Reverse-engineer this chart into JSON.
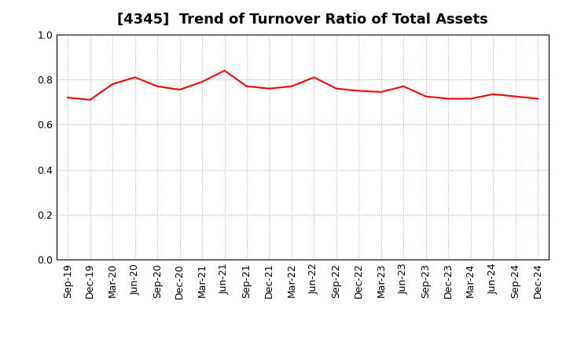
{
  "title": "[4345]  Trend of Turnover Ratio of Total Assets",
  "labels": [
    "Sep-19",
    "Dec-19",
    "Mar-20",
    "Jun-20",
    "Sep-20",
    "Dec-20",
    "Mar-21",
    "Jun-21",
    "Sep-21",
    "Dec-21",
    "Mar-22",
    "Jun-22",
    "Sep-22",
    "Dec-22",
    "Mar-23",
    "Jun-23",
    "Sep-23",
    "Dec-23",
    "Mar-24",
    "Jun-24",
    "Sep-24",
    "Dec-24"
  ],
  "values": [
    0.72,
    0.71,
    0.78,
    0.81,
    0.77,
    0.755,
    0.79,
    0.84,
    0.77,
    0.76,
    0.77,
    0.81,
    0.76,
    0.75,
    0.745,
    0.77,
    0.725,
    0.715,
    0.715,
    0.735,
    0.725,
    0.715
  ],
  "line_color": "#FF0000",
  "line_width": 1.5,
  "ylim": [
    0.0,
    1.0
  ],
  "yticks": [
    0.0,
    0.2,
    0.4,
    0.6,
    0.8,
    1.0
  ],
  "background_color": "#FFFFFF",
  "grid_color": "#AAAAAA",
  "title_fontsize": 13,
  "tick_fontsize": 9,
  "title_color": "#000000"
}
